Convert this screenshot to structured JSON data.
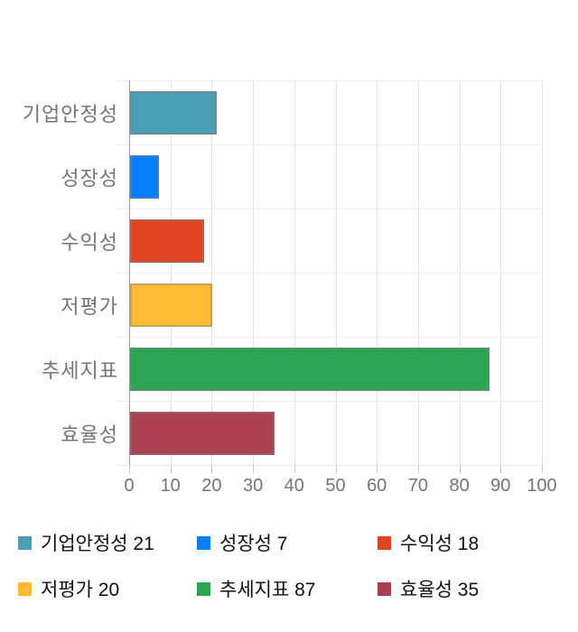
{
  "chart_data": {
    "type": "bar",
    "orientation": "horizontal",
    "title": "",
    "categories": [
      "기업안정성",
      "성장성",
      "수익성",
      "저평가",
      "추세지표",
      "효율성"
    ],
    "values": [
      21,
      7,
      18,
      20,
      87,
      35
    ],
    "colors": [
      "#4A9FB5",
      "#077CFC",
      "#DF4523",
      "#FDBA33",
      "#2CA552",
      "#A94150"
    ],
    "xlim": [
      0,
      100
    ],
    "x_ticks": [
      0,
      10,
      20,
      30,
      40,
      50,
      60,
      70,
      80,
      90,
      100
    ],
    "grid": true,
    "legend_position": "bottom"
  },
  "legend": {
    "items": [
      {
        "label": "기업안정성",
        "value": 21,
        "color": "#4A9FB5"
      },
      {
        "label": "성장성",
        "value": 7,
        "color": "#077CFC"
      },
      {
        "label": "수익성",
        "value": 18,
        "color": "#DF4523"
      },
      {
        "label": "저평가",
        "value": 20,
        "color": "#FDBA33"
      },
      {
        "label": "추세지표",
        "value": 87,
        "color": "#2CA552"
      },
      {
        "label": "효율성",
        "value": 35,
        "color": "#A94150"
      }
    ]
  },
  "axis_colors": {
    "gridline": "#e4e4e4",
    "row_separator": "#ececec",
    "axis_line": "#999999",
    "tick_mark": "#c9c9c9",
    "label_text": "#757575"
  }
}
